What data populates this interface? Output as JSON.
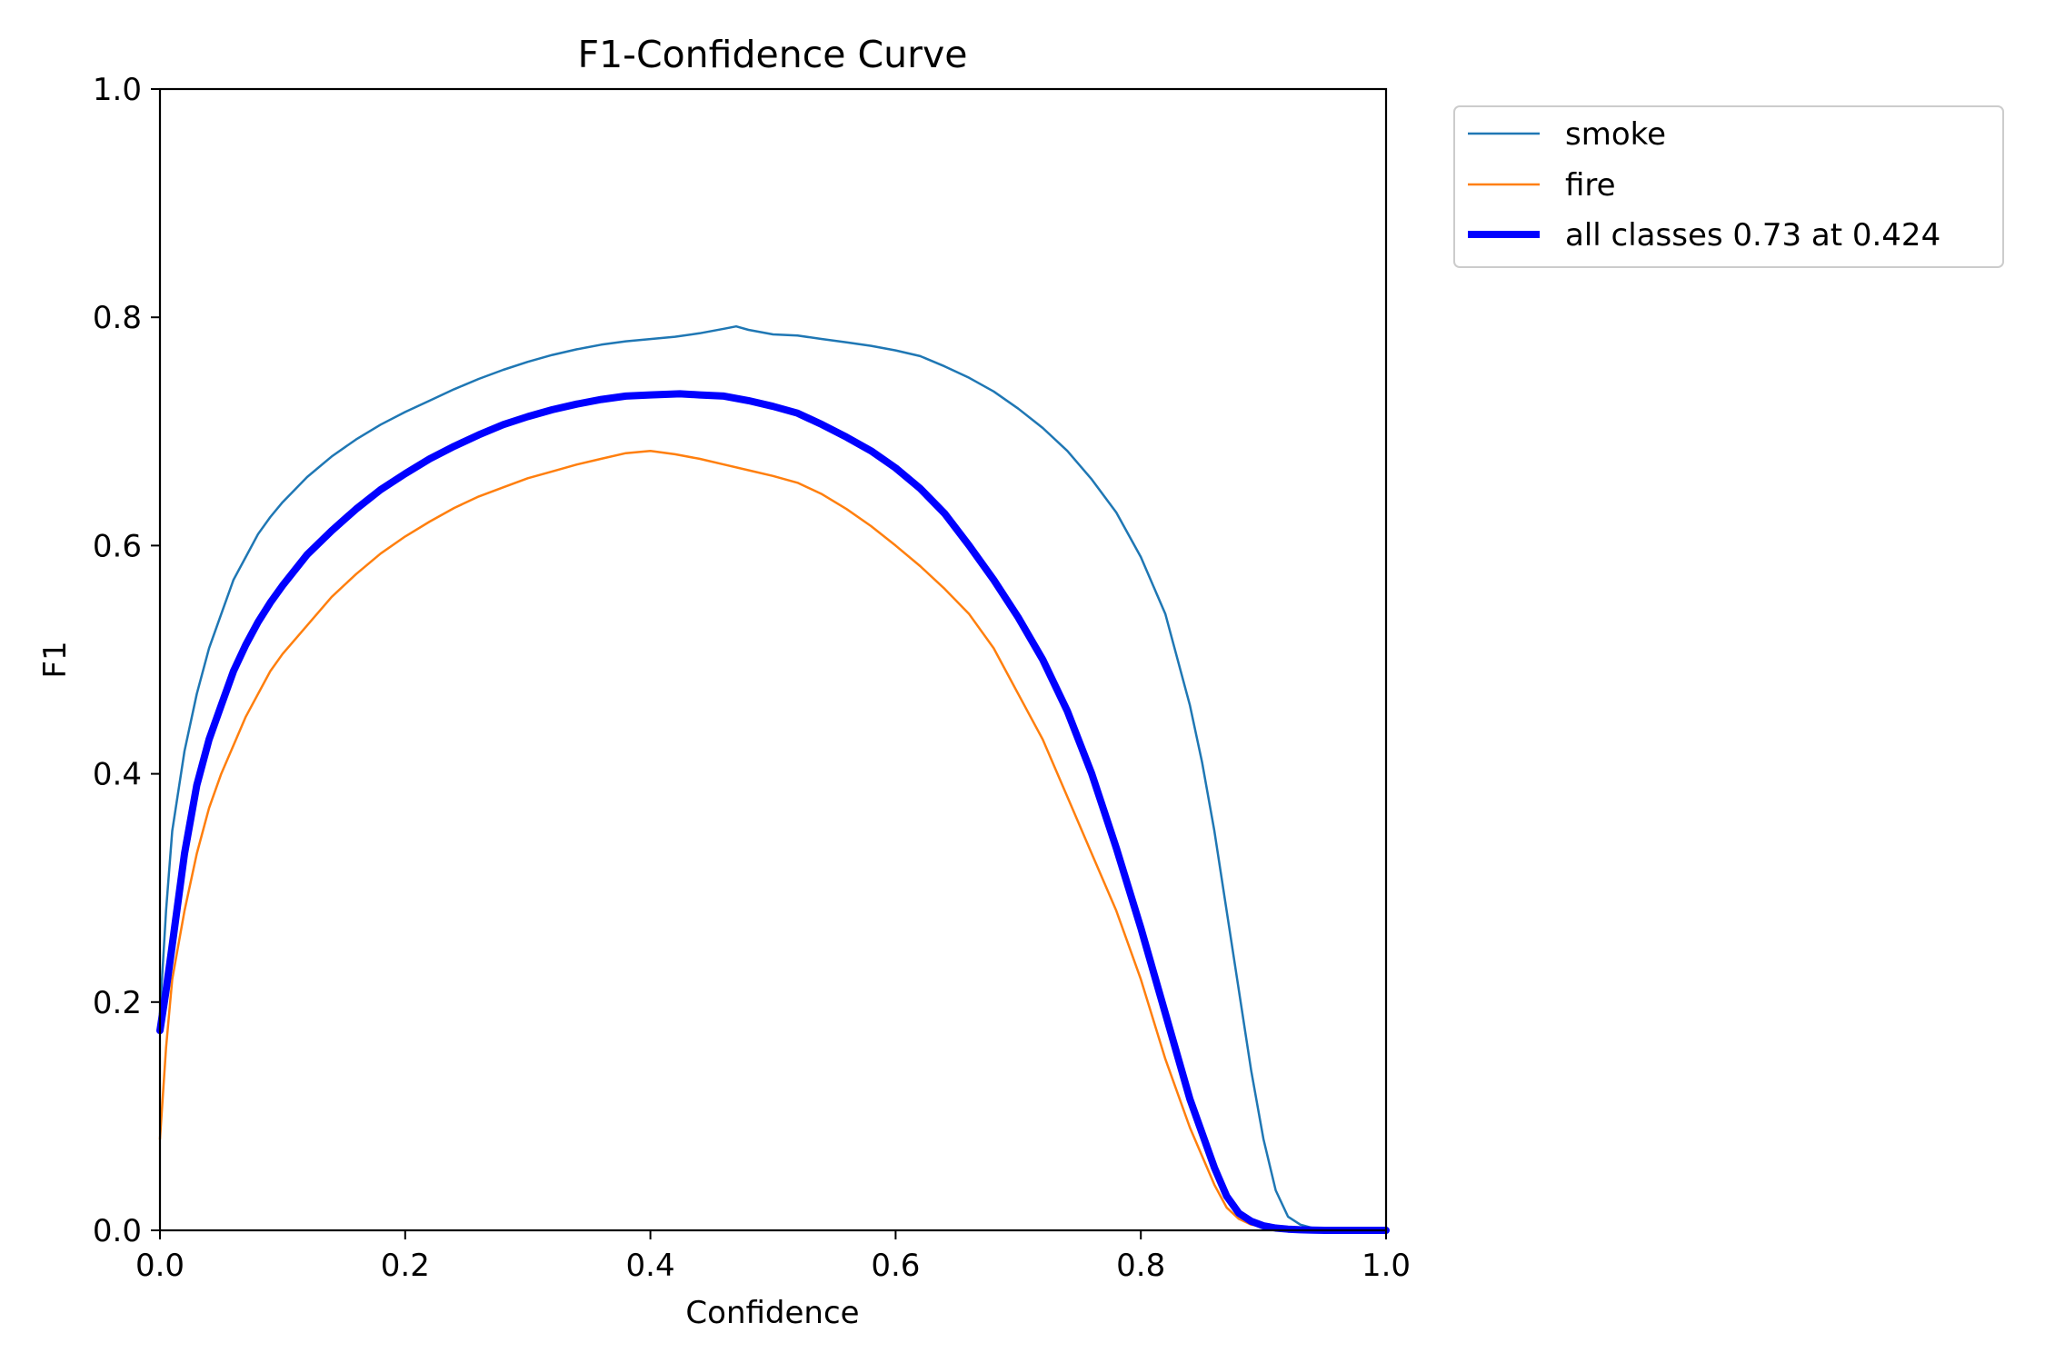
{
  "chart_data": {
    "type": "line",
    "title": "F1-Confidence Curve",
    "xlabel": "Confidence",
    "ylabel": "F1",
    "xlim": [
      0.0,
      1.0
    ],
    "ylim": [
      0.0,
      1.0
    ],
    "xticks": [
      "0.0",
      "0.2",
      "0.4",
      "0.6",
      "0.8",
      "1.0"
    ],
    "yticks": [
      "0.0",
      "0.2",
      "0.4",
      "0.6",
      "0.8",
      "1.0"
    ],
    "grid": false,
    "legend_position": "outside top-right",
    "series": [
      {
        "name": "smoke",
        "color": "#1f77b4",
        "x": [
          0.0,
          0.005,
          0.01,
          0.02,
          0.03,
          0.04,
          0.05,
          0.06,
          0.07,
          0.08,
          0.09,
          0.1,
          0.12,
          0.14,
          0.16,
          0.18,
          0.2,
          0.22,
          0.24,
          0.26,
          0.28,
          0.3,
          0.32,
          0.34,
          0.36,
          0.38,
          0.4,
          0.42,
          0.44,
          0.46,
          0.47,
          0.48,
          0.5,
          0.52,
          0.54,
          0.56,
          0.58,
          0.6,
          0.62,
          0.64,
          0.66,
          0.68,
          0.7,
          0.72,
          0.74,
          0.76,
          0.78,
          0.8,
          0.82,
          0.84,
          0.85,
          0.86,
          0.87,
          0.88,
          0.89,
          0.9,
          0.91,
          0.92,
          0.93,
          0.94,
          0.95,
          0.96,
          0.98,
          1.0
        ],
        "y": [
          0.19,
          0.28,
          0.35,
          0.42,
          0.47,
          0.51,
          0.54,
          0.57,
          0.59,
          0.61,
          0.625,
          0.638,
          0.66,
          0.678,
          0.693,
          0.706,
          0.717,
          0.727,
          0.737,
          0.746,
          0.754,
          0.761,
          0.767,
          0.772,
          0.776,
          0.779,
          0.781,
          0.783,
          0.786,
          0.79,
          0.792,
          0.789,
          0.785,
          0.784,
          0.781,
          0.778,
          0.775,
          0.771,
          0.766,
          0.757,
          0.747,
          0.735,
          0.72,
          0.703,
          0.683,
          0.658,
          0.629,
          0.59,
          0.54,
          0.46,
          0.41,
          0.35,
          0.28,
          0.21,
          0.14,
          0.08,
          0.035,
          0.012,
          0.005,
          0.002,
          0.001,
          0.0,
          0.0,
          0.0
        ]
      },
      {
        "name": "fire",
        "color": "#ff7f0e",
        "x": [
          0.0,
          0.005,
          0.01,
          0.02,
          0.03,
          0.04,
          0.05,
          0.06,
          0.07,
          0.08,
          0.09,
          0.1,
          0.12,
          0.14,
          0.16,
          0.18,
          0.2,
          0.22,
          0.24,
          0.26,
          0.28,
          0.3,
          0.32,
          0.34,
          0.36,
          0.38,
          0.4,
          0.42,
          0.44,
          0.46,
          0.48,
          0.5,
          0.52,
          0.54,
          0.56,
          0.58,
          0.6,
          0.62,
          0.64,
          0.66,
          0.68,
          0.7,
          0.72,
          0.74,
          0.76,
          0.78,
          0.8,
          0.82,
          0.84,
          0.86,
          0.87,
          0.88,
          0.89,
          0.9,
          0.91,
          0.92,
          0.93,
          0.95,
          0.97,
          1.0
        ],
        "y": [
          0.08,
          0.16,
          0.22,
          0.28,
          0.33,
          0.37,
          0.4,
          0.425,
          0.45,
          0.47,
          0.49,
          0.505,
          0.53,
          0.555,
          0.575,
          0.593,
          0.608,
          0.621,
          0.633,
          0.643,
          0.651,
          0.659,
          0.665,
          0.671,
          0.676,
          0.681,
          0.683,
          0.68,
          0.676,
          0.671,
          0.666,
          0.661,
          0.655,
          0.645,
          0.632,
          0.617,
          0.6,
          0.582,
          0.562,
          0.54,
          0.51,
          0.47,
          0.43,
          0.38,
          0.33,
          0.28,
          0.22,
          0.15,
          0.09,
          0.04,
          0.02,
          0.01,
          0.005,
          0.003,
          0.001,
          0.0,
          0.0,
          0.0,
          0.0,
          0.0
        ]
      },
      {
        "name": "all classes 0.73 at 0.424",
        "color": "#0000ff",
        "x": [
          0.0,
          0.005,
          0.01,
          0.02,
          0.03,
          0.04,
          0.05,
          0.06,
          0.07,
          0.08,
          0.09,
          0.1,
          0.12,
          0.14,
          0.16,
          0.18,
          0.2,
          0.22,
          0.24,
          0.26,
          0.28,
          0.3,
          0.32,
          0.34,
          0.36,
          0.38,
          0.4,
          0.424,
          0.44,
          0.46,
          0.48,
          0.5,
          0.52,
          0.54,
          0.56,
          0.58,
          0.6,
          0.62,
          0.64,
          0.66,
          0.68,
          0.7,
          0.72,
          0.74,
          0.76,
          0.78,
          0.8,
          0.82,
          0.84,
          0.86,
          0.87,
          0.88,
          0.89,
          0.9,
          0.91,
          0.92,
          0.93,
          0.94,
          0.95,
          0.97,
          1.0
        ],
        "y": [
          0.175,
          0.21,
          0.25,
          0.33,
          0.39,
          0.43,
          0.46,
          0.49,
          0.513,
          0.533,
          0.55,
          0.565,
          0.592,
          0.613,
          0.632,
          0.649,
          0.663,
          0.676,
          0.687,
          0.697,
          0.706,
          0.713,
          0.719,
          0.724,
          0.728,
          0.731,
          0.732,
          0.733,
          0.732,
          0.731,
          0.727,
          0.722,
          0.716,
          0.706,
          0.695,
          0.683,
          0.668,
          0.65,
          0.628,
          0.6,
          0.57,
          0.537,
          0.5,
          0.455,
          0.4,
          0.335,
          0.265,
          0.19,
          0.115,
          0.055,
          0.03,
          0.015,
          0.008,
          0.004,
          0.002,
          0.001,
          0.0005,
          0.0002,
          0.0,
          0.0,
          0.0
        ]
      }
    ]
  }
}
